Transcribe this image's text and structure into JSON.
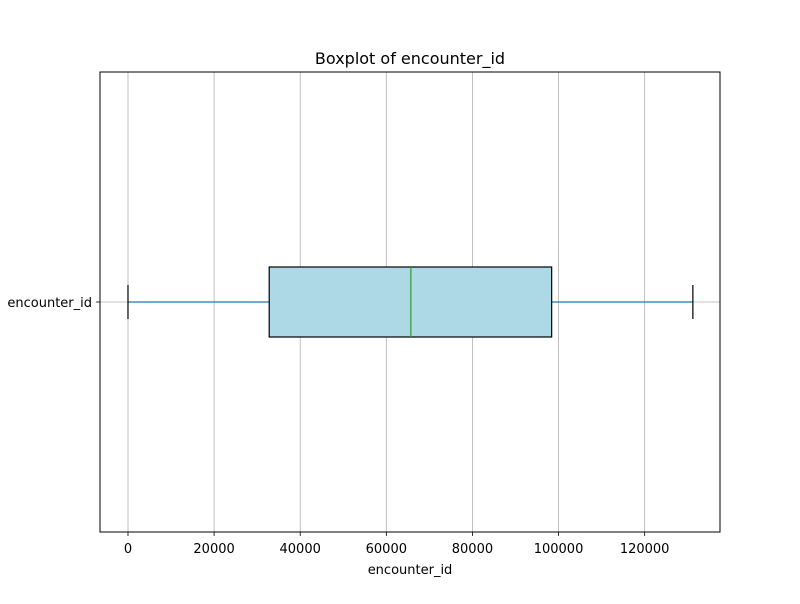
{
  "chart_data": {
    "type": "boxplot",
    "orientation": "horizontal",
    "title": "Boxplot of encounter_id",
    "xlabel": "encounter_id",
    "ylabel": "",
    "xlim": [
      -6500,
      137500
    ],
    "xticks": [
      0,
      20000,
      40000,
      60000,
      80000,
      100000,
      120000
    ],
    "xtick_labels": [
      "0",
      "20000",
      "40000",
      "60000",
      "80000",
      "100000",
      "120000"
    ],
    "grid": true,
    "categories": [
      "encounter_id"
    ],
    "boxes": [
      {
        "category": "encounter_id",
        "whisker_low": 0,
        "q1": 32800,
        "median": 65700,
        "q3": 98400,
        "whisker_high": 131200
      }
    ],
    "colors": {
      "box_fill": "#add8e6",
      "box_edge": "#000000",
      "whisker": "#1f77b4",
      "cap": "#000000",
      "median": "#2ca02c",
      "grid": "#b0b0b0",
      "axes": "#000000"
    }
  }
}
